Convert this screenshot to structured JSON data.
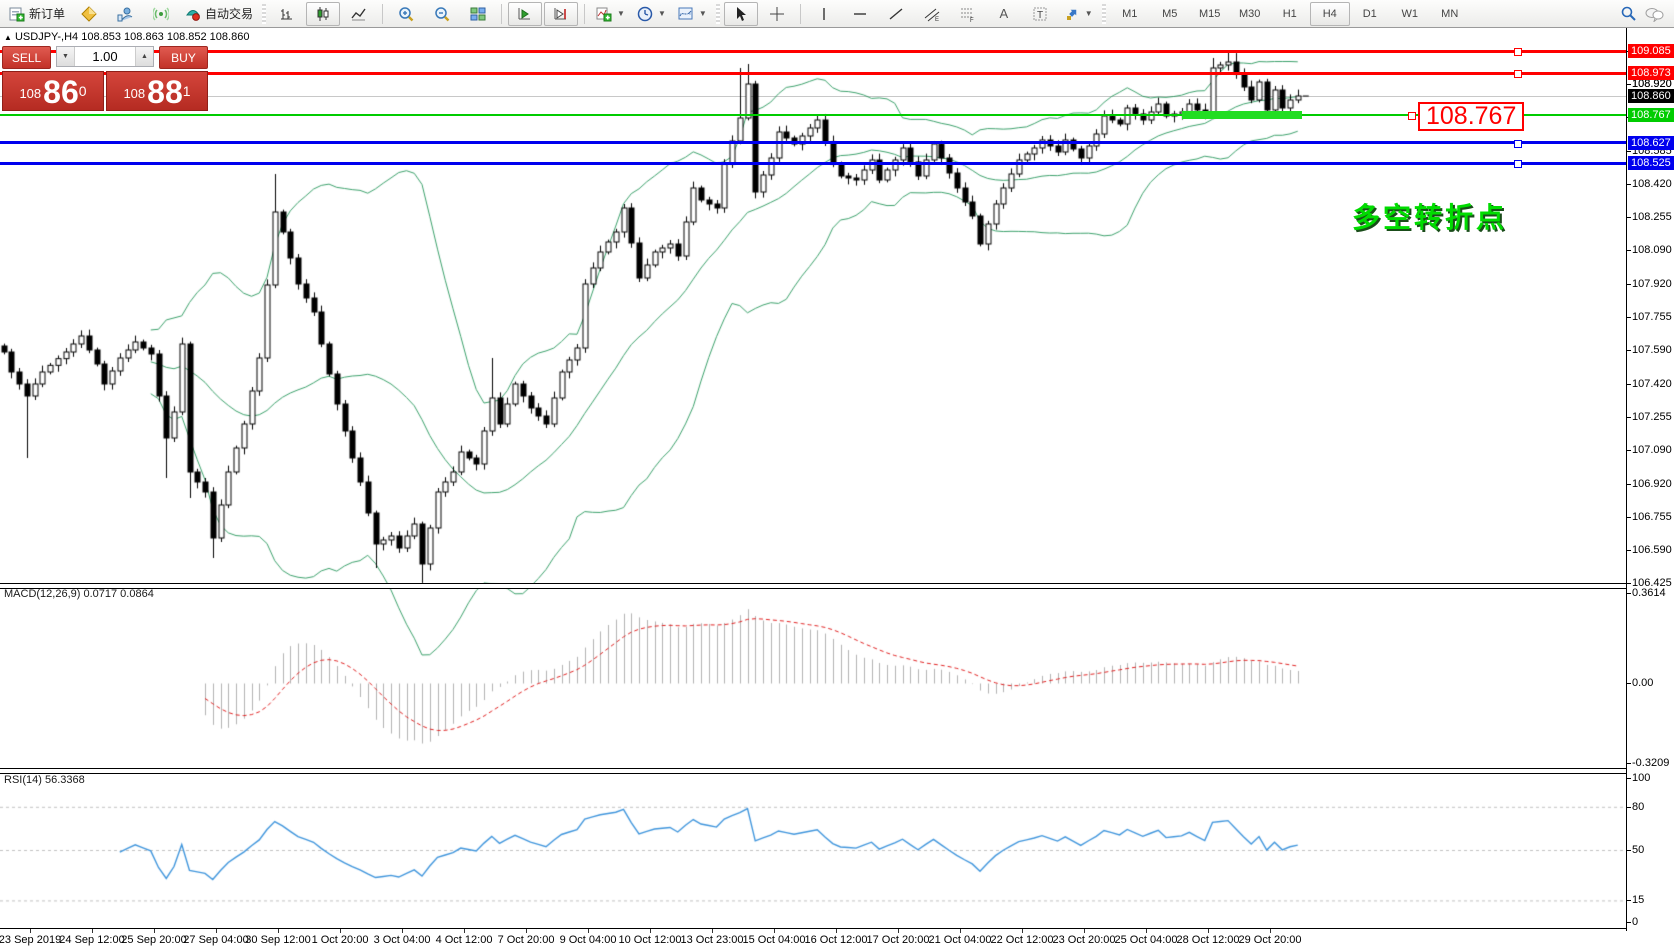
{
  "toolbar": {
    "new_order_label": "新订单",
    "autotrade_label": "自动交易",
    "timeframes": [
      "M1",
      "M5",
      "M15",
      "M30",
      "H1",
      "H4",
      "D1",
      "W1",
      "MN"
    ],
    "active_timeframe": "H4",
    "text_tool_label": "A"
  },
  "header": {
    "collapse_arrow": "▲",
    "symbol_period": "USDJPY-,H4",
    "ohlc_text": "108.853 108.863 108.852 108.860"
  },
  "trade_panel": {
    "sell_label": "SELL",
    "buy_label": "BUY",
    "volume": "1.00",
    "bid": {
      "prefix": "108",
      "big": "86",
      "sup": "0"
    },
    "ask": {
      "prefix": "108",
      "big": "88",
      "sup": "1"
    }
  },
  "annotations": {
    "price_callout": "108.767",
    "cn_note": "多空转折点"
  },
  "macd_panel": {
    "label": "MACD(12,26,9) 0.0717 0.0864",
    "axis_labels": [
      "0.3614",
      "0.00",
      "-0.3209"
    ]
  },
  "rsi_panel": {
    "label": "RSI(14) 56.3368",
    "axis_labels": [
      "100",
      "80",
      "50",
      "15",
      "0"
    ]
  },
  "chart_data": {
    "type": "candlestick",
    "symbol": "USDJPY-",
    "timeframe": "H4",
    "title": "USDJPY-,H4 108.853 108.863 108.852 108.860",
    "bars": 168,
    "ylim": [
      106.37,
      109.2
    ],
    "price_ticks": [
      109.085,
      108.92,
      108.755,
      108.585,
      108.42,
      108.255,
      108.09,
      107.92,
      107.755,
      107.59,
      107.42,
      107.255,
      107.09,
      106.92,
      106.755,
      106.59,
      106.425
    ],
    "time_labels": [
      "23 Sep 2019",
      "24 Sep 12:00",
      "25 Sep 20:00",
      "27 Sep 04:00",
      "30 Sep 12:00",
      "1 Oct 20:00",
      "3 Oct 04:00",
      "4 Oct 12:00",
      "7 Oct 20:00",
      "9 Oct 04:00",
      "10 Oct 12:00",
      "13 Oct 23:00",
      "15 Oct 04:00",
      "16 Oct 12:00",
      "17 Oct 20:00",
      "21 Oct 04:00",
      "22 Oct 12:00",
      "23 Oct 20:00",
      "25 Oct 04:00",
      "28 Oct 12:00",
      "29 Oct 20:00"
    ],
    "close_anchors": [
      [
        0,
        107.58
      ],
      [
        1,
        107.48
      ],
      [
        3,
        107.36
      ],
      [
        5,
        107.48
      ],
      [
        8,
        107.58
      ],
      [
        10,
        107.66
      ],
      [
        12,
        107.52
      ],
      [
        13,
        107.42
      ],
      [
        15,
        107.55
      ],
      [
        17,
        107.63
      ],
      [
        19,
        107.57
      ],
      [
        21,
        107.15
      ],
      [
        22,
        107.28
      ],
      [
        23,
        107.62
      ],
      [
        24,
        106.98
      ],
      [
        26,
        106.88
      ],
      [
        27,
        106.65
      ],
      [
        29,
        106.98
      ],
      [
        31,
        107.22
      ],
      [
        33,
        107.55
      ],
      [
        35,
        108.28
      ],
      [
        36,
        108.18
      ],
      [
        38,
        107.92
      ],
      [
        40,
        107.78
      ],
      [
        41,
        107.62
      ],
      [
        43,
        107.32
      ],
      [
        45,
        107.05
      ],
      [
        46,
        106.93
      ],
      [
        48,
        106.62
      ],
      [
        50,
        106.66
      ],
      [
        51,
        106.6
      ],
      [
        53,
        106.72
      ],
      [
        54,
        106.52
      ],
      [
        56,
        106.88
      ],
      [
        58,
        106.98
      ],
      [
        59,
        107.08
      ],
      [
        61,
        107.02
      ],
      [
        63,
        107.35
      ],
      [
        64,
        107.22
      ],
      [
        66,
        107.42
      ],
      [
        68,
        107.3
      ],
      [
        70,
        107.22
      ],
      [
        72,
        107.48
      ],
      [
        74,
        107.6
      ],
      [
        75,
        107.92
      ],
      [
        77,
        108.08
      ],
      [
        79,
        108.18
      ],
      [
        80,
        108.3
      ],
      [
        82,
        107.95
      ],
      [
        84,
        108.08
      ],
      [
        86,
        108.12
      ],
      [
        87,
        108.06
      ],
      [
        89,
        108.4
      ],
      [
        90,
        108.34
      ],
      [
        92,
        108.3
      ],
      [
        93,
        108.52
      ],
      [
        95,
        108.75
      ],
      [
        96,
        108.92
      ],
      [
        97,
        108.38
      ],
      [
        99,
        108.55
      ],
      [
        100,
        108.68
      ],
      [
        102,
        108.62
      ],
      [
        104,
        108.7
      ],
      [
        105,
        108.74
      ],
      [
        107,
        108.52
      ],
      [
        108,
        108.46
      ],
      [
        110,
        108.44
      ],
      [
        112,
        108.54
      ],
      [
        113,
        108.44
      ],
      [
        115,
        108.54
      ],
      [
        116,
        108.6
      ],
      [
        118,
        108.46
      ],
      [
        120,
        108.62
      ],
      [
        121,
        108.55
      ],
      [
        123,
        108.4
      ],
      [
        125,
        108.26
      ],
      [
        126,
        108.12
      ],
      [
        128,
        108.32
      ],
      [
        129,
        108.4
      ],
      [
        131,
        108.54
      ],
      [
        133,
        108.6
      ],
      [
        134,
        108.64
      ],
      [
        136,
        108.58
      ],
      [
        137,
        108.64
      ],
      [
        139,
        108.55
      ],
      [
        141,
        108.67
      ],
      [
        142,
        108.76
      ],
      [
        144,
        108.72
      ],
      [
        145,
        108.8
      ],
      [
        147,
        108.74
      ],
      [
        149,
        108.82
      ],
      [
        150,
        108.76
      ],
      [
        152,
        108.78
      ],
      [
        153,
        108.82
      ],
      [
        155,
        108.76
      ],
      [
        156,
        109.0
      ],
      [
        158,
        109.03
      ],
      [
        159,
        108.97
      ],
      [
        161,
        108.84
      ],
      [
        162,
        108.93
      ],
      [
        163,
        108.79
      ],
      [
        164,
        108.89
      ],
      [
        165,
        108.8
      ],
      [
        166,
        108.84
      ],
      [
        167,
        108.86
      ]
    ],
    "wick_overrides": {
      "3": {
        "l": 107.05
      },
      "21": {
        "l": 106.95
      },
      "24": {
        "l": 106.85
      },
      "27": {
        "l": 106.55
      },
      "35": {
        "h": 108.47
      },
      "48": {
        "l": 106.5
      },
      "54": {
        "l": 106.425
      },
      "63": {
        "h": 107.55
      },
      "95": {
        "h": 109.0
      },
      "96": {
        "h": 109.02
      },
      "156": {
        "h": 109.05
      },
      "158": {
        "h": 109.085
      },
      "159": {
        "h": 109.075
      }
    },
    "bollinger": {
      "period": 20,
      "deviation": 2,
      "color": "#3aa06a"
    },
    "horizontal_lines": [
      {
        "price": 109.085,
        "color": "#ff0000",
        "width": 3,
        "tag_bg": "#ff0000",
        "tag_fg": "#ffffff"
      },
      {
        "price": 108.973,
        "color": "#ff0000",
        "width": 3,
        "tag_bg": "#ff0000",
        "tag_fg": "#ffffff"
      },
      {
        "price": 108.767,
        "color": "#00cc00",
        "width": 2,
        "tag_bg": "#00cc00",
        "tag_fg": "#ffffff"
      },
      {
        "price": 108.627,
        "color": "#0000ee",
        "width": 3,
        "tag_bg": "#0000ee",
        "tag_fg": "#ffffff"
      },
      {
        "price": 108.525,
        "color": "#0000ee",
        "width": 3,
        "tag_bg": "#0000ee",
        "tag_fg": "#ffffff"
      }
    ],
    "current_price": {
      "value": 108.86,
      "label": "108.860",
      "line_color": "#c8c8c8",
      "tag_bg": "#000000",
      "tag_fg": "#ffffff"
    },
    "extra_tick_label": "108.920",
    "highlight_segment": {
      "price": 108.767,
      "from_bar": 152,
      "to_bar": 166,
      "color": "#22dd22",
      "thickness": 8
    },
    "macd": {
      "fast": 12,
      "slow": 26,
      "signal": 9,
      "last_value": 0.0717,
      "last_signal": 0.0864,
      "axis": [
        0.3614,
        0.0,
        -0.3209
      ],
      "hist_color": "#b2b2b2",
      "signal_color": "#e02020"
    },
    "rsi": {
      "period": 14,
      "last_value": 56.3368,
      "axis": [
        100,
        80,
        50,
        15,
        0
      ],
      "levels": [
        80,
        50,
        15
      ],
      "color": "#3f95dc"
    }
  }
}
